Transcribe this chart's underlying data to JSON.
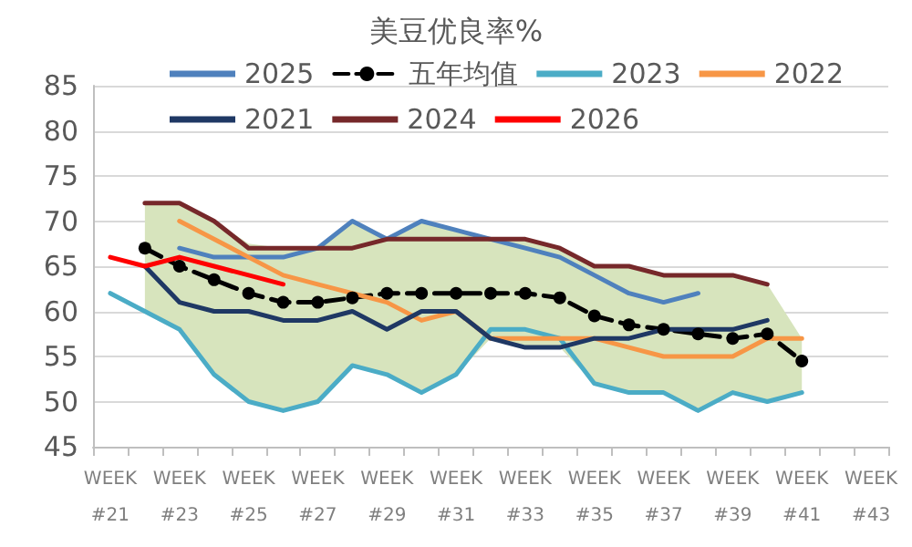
{
  "chart_data": {
    "type": "line",
    "title": "美豆优良率%",
    "categories": [
      "WEEK #21",
      null,
      "WEEK #23",
      null,
      "WEEK #25",
      null,
      "WEEK #27",
      null,
      "WEEK #29",
      null,
      "WEEK #31",
      null,
      "WEEK #33",
      null,
      "WEEK #35",
      null,
      "WEEK #37",
      null,
      "WEEK #39",
      null,
      "WEEK #41",
      null,
      "WEEK #43"
    ],
    "series": [
      {
        "name": "2025",
        "color": "#4f81bd",
        "values": [
          null,
          null,
          67,
          66,
          66,
          66,
          67,
          70,
          68,
          70,
          69,
          68,
          67,
          66,
          64,
          62,
          61,
          62,
          null,
          null,
          null,
          null,
          null
        ]
      },
      {
        "name": "五年均值",
        "color": "#000000",
        "line_style": "dashed",
        "marker": "circle",
        "values": [
          null,
          67,
          65,
          63.5,
          62,
          61,
          61,
          61.5,
          62,
          62,
          62,
          62,
          62,
          61.5,
          59.5,
          58.5,
          58,
          57.5,
          57,
          57.5,
          54.5,
          null,
          null
        ],
        "lower": [
          null,
          60,
          58,
          53,
          50,
          49,
          50,
          54,
          53,
          51,
          53,
          57,
          56,
          56,
          52,
          51,
          51,
          49,
          51,
          50,
          51,
          null,
          null
        ],
        "upper": [
          null,
          72,
          72,
          70,
          67.5,
          67,
          67,
          70,
          68,
          70,
          69,
          68,
          68,
          67,
          65,
          65,
          64,
          64,
          64,
          63,
          57,
          null,
          null
        ]
      },
      {
        "name": "2023",
        "color": "#4bacc6",
        "values": [
          62,
          60,
          58,
          53,
          50,
          49,
          50,
          54,
          53,
          51,
          53,
          58,
          58,
          57,
          52,
          51,
          51,
          49,
          51,
          50,
          51,
          null,
          null
        ]
      },
      {
        "name": "2022",
        "color": "#f79646",
        "values": [
          null,
          null,
          70,
          68,
          66,
          64,
          63,
          62,
          61,
          59,
          60,
          57,
          57,
          57,
          57,
          56,
          55,
          55,
          55,
          57,
          57,
          null,
          null
        ]
      },
      {
        "name": "2021",
        "color": "#1f3864",
        "values": [
          null,
          65,
          61,
          60,
          60,
          59,
          59,
          60,
          58,
          60,
          60,
          57,
          56,
          56,
          57,
          57,
          58,
          58,
          58,
          59,
          null,
          null,
          null
        ]
      },
      {
        "name": "2024",
        "color": "#76282a",
        "values": [
          null,
          72,
          72,
          70,
          67,
          67,
          67,
          67,
          68,
          68,
          68,
          68,
          68,
          67,
          65,
          65,
          64,
          64,
          64,
          63,
          null,
          null,
          null
        ]
      },
      {
        "name": "2026",
        "color": "#ff0000",
        "values": [
          66,
          65,
          66,
          65,
          64,
          63,
          null,
          null,
          null,
          null,
          null,
          null,
          null,
          null,
          null,
          null,
          null,
          null,
          null,
          null,
          null,
          null,
          null
        ]
      }
    ],
    "ylim": [
      45,
      85
    ],
    "yticks": [
      45,
      50,
      55,
      60,
      65,
      70,
      75,
      80,
      85
    ],
    "grid": "y",
    "legend": "top",
    "marker": "none",
    "line_style": "solid"
  }
}
